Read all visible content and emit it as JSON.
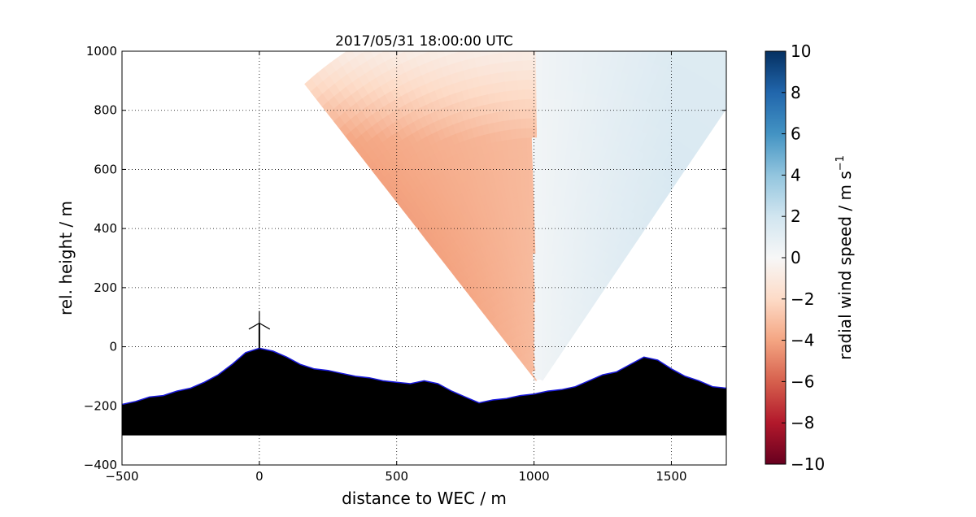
{
  "chart_data": {
    "type": "heatmap",
    "title": "2017/05/31 18:00:00 UTC",
    "xlabel": "distance to WEC / m",
    "ylabel": "rel. height / m",
    "xlim": [
      -500,
      1700
    ],
    "ylim": [
      -400,
      1000
    ],
    "xticks": [
      -500,
      0,
      500,
      1000,
      1500
    ],
    "yticks": [
      -400,
      -200,
      0,
      200,
      400,
      600,
      800,
      1000
    ],
    "xtick_labels": [
      "−500",
      "0",
      "500",
      "1000",
      "1500"
    ],
    "ytick_labels": [
      "−400",
      "−200",
      "0",
      "200",
      "400",
      "600",
      "800",
      "1000"
    ],
    "grid": true,
    "colorbar": {
      "label": "radial wind speed / m s",
      "label_superscript": "−1",
      "range": [
        -10,
        10
      ],
      "ticks": [
        -10,
        -8,
        -6,
        -4,
        -2,
        0,
        2,
        4,
        6,
        8,
        10
      ],
      "tick_labels": [
        "−10",
        "−8",
        "−6",
        "−4",
        "−2",
        "0",
        "2",
        "4",
        "6",
        "8",
        "10"
      ],
      "colormap": "RdBu",
      "stops": [
        "#67001f",
        "#b2182b",
        "#d6604d",
        "#f4a582",
        "#fddbc7",
        "#f7f7f7",
        "#d1e5f0",
        "#92c5de",
        "#4393c3",
        "#2166ac",
        "#053061"
      ]
    },
    "scan": {
      "origin": [
        1020,
        -130
      ],
      "max_range_m": 1330,
      "left_edge_angle_deg": 130,
      "right_edge_angle_deg": 54,
      "sign_change_distance_m": 1000,
      "field_min": -6,
      "field_max": 2
    },
    "terrain_profile": {
      "x": [
        -500,
        -450,
        -400,
        -350,
        -300,
        -250,
        -200,
        -150,
        -100,
        -50,
        0,
        50,
        100,
        150,
        200,
        250,
        300,
        350,
        400,
        450,
        500,
        550,
        600,
        650,
        700,
        750,
        800,
        850,
        900,
        950,
        1000,
        1050,
        1100,
        1150,
        1200,
        1250,
        1300,
        1350,
        1400,
        1450,
        1500,
        1550,
        1600,
        1650,
        1700
      ],
      "y": [
        -195,
        -185,
        -170,
        -165,
        -150,
        -140,
        -120,
        -95,
        -60,
        -20,
        -5,
        -15,
        -35,
        -60,
        -75,
        -80,
        -90,
        -100,
        -105,
        -115,
        -120,
        -125,
        -115,
        -125,
        -150,
        -170,
        -190,
        -180,
        -175,
        -165,
        -160,
        -150,
        -145,
        -135,
        -115,
        -95,
        -85,
        -60,
        -35,
        -45,
        -75,
        -100,
        -115,
        -135,
        -140
      ],
      "base": -300,
      "fill": "#000000",
      "outline": "#1a1adc"
    },
    "wind_turbine": {
      "x": 0,
      "hub_height": 80,
      "rotor_diameter": 82
    }
  }
}
